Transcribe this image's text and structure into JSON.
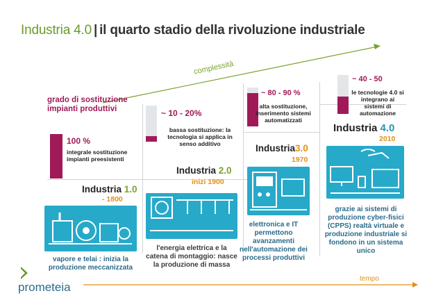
{
  "title": {
    "part1": "Industria 4.0",
    "separator": "|",
    "part2": "il quarto stadio della rivoluzione industriale"
  },
  "axis": {
    "complexity_label": "complessità",
    "time_label": "tempo"
  },
  "y_label": "grado di sostituzione impianti produttivi",
  "stages": [
    {
      "name": "Industria",
      "version": "1.0",
      "year": "- 1800",
      "percent": "100 %",
      "substitution": "integrale sostituzione impianti preesistenti",
      "fill": 1.0,
      "description": "vapore e telai : inizia la produzione meccanizzata"
    },
    {
      "name": "Industria",
      "version": "2.0",
      "year": "inizi 1900",
      "percent": "~ 10 - 20%",
      "substitution": "bassa sostituzione: la tecnologia si applica in senso additivo",
      "fill": 0.15,
      "description": "l'energia elettrica e la catena di montaggio: nasce la produzione di massa"
    },
    {
      "name": "Industria",
      "version": "3.0",
      "year": "1970",
      "percent": "~ 80 - 90 %",
      "substitution": "alta sostituzione, inserimento sistemi automatizzati",
      "fill": 0.85,
      "description": "elettronica e IT permettono avanzamenti nell'automazione dei processi produttivi"
    },
    {
      "name": "Industria",
      "version": "4.0",
      "year": "2010",
      "percent": "~ 40 - 50",
      "substitution": "le tecnologie 4.0 si integrano ai sistemi di automazione",
      "fill": 0.45,
      "description": "grazie ai sistemi di produzione cyber-fisici (CPPS) realtà virtuale e produzione industriale si fondono in un sistema unico"
    }
  ],
  "logo": {
    "text": "prometeia"
  },
  "colors": {
    "green": "#6a9a2a",
    "magenta": "#a01a58",
    "teal": "#27a9c9",
    "orange": "#e0901a"
  }
}
